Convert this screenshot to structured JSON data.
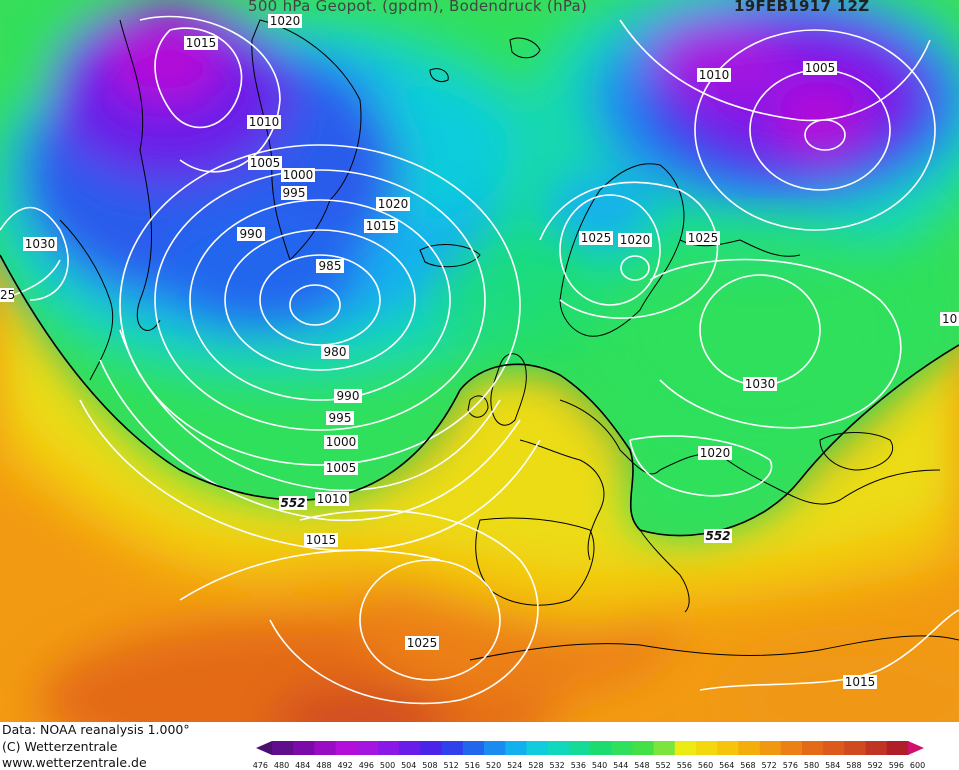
{
  "header": {
    "title": "500 hPa Geopot. (gpdm), Bodendruck (hPa)",
    "date": "19FEB1917 12Z"
  },
  "footer": {
    "credit_data": "Data: NOAA reanalysis 1.000°",
    "credit_copyright": "(C) Wetterzentrale",
    "credit_url": "www.wetterzentrale.de"
  },
  "colors": {
    "isobar": "#ffffff",
    "contour_552": "#000000",
    "coastline": "#000000"
  },
  "scale": {
    "values": [
      "476",
      "480",
      "484",
      "488",
      "492",
      "496",
      "500",
      "504",
      "508",
      "512",
      "516",
      "520",
      "524",
      "528",
      "532",
      "536",
      "540",
      "544",
      "548",
      "552",
      "556",
      "560",
      "564",
      "568",
      "572",
      "576",
      "580",
      "584",
      "588",
      "592",
      "596",
      "600"
    ],
    "colors": [
      "#4b0f6e",
      "#600e8c",
      "#7c0aa8",
      "#990cc4",
      "#b40fd8",
      "#a614e0",
      "#8a18e6",
      "#6a1ce8",
      "#4a24e8",
      "#3040ec",
      "#2266ee",
      "#1a8cf0",
      "#12b0ee",
      "#10ccdc",
      "#10d8bc",
      "#14dc98",
      "#1cdc70",
      "#2ee05c",
      "#44e048",
      "#7ce43c",
      "#ecec14",
      "#f4d80e",
      "#f6c40c",
      "#f4ae0c",
      "#f09812",
      "#ec8014",
      "#e46a18",
      "#dc5a1c",
      "#d04a20",
      "#c03424",
      "#b01e28",
      "#d0106c"
    ]
  },
  "isobar_labels": [
    {
      "text": "1020"
    },
    {
      "text": "1015"
    },
    {
      "text": "1010"
    },
    {
      "text": "1005"
    },
    {
      "text": "1000"
    },
    {
      "text": "995"
    },
    {
      "text": "990"
    },
    {
      "text": "985"
    },
    {
      "text": "980"
    },
    {
      "text": "990"
    },
    {
      "text": "995"
    },
    {
      "text": "1000"
    },
    {
      "text": "1005"
    },
    {
      "text": "1010"
    },
    {
      "text": "1015"
    },
    {
      "text": "1020"
    },
    {
      "text": "1015"
    },
    {
      "text": "1030"
    },
    {
      "text": "1010"
    },
    {
      "text": "1005"
    },
    {
      "text": "1025"
    },
    {
      "text": "1020"
    },
    {
      "text": "1025"
    },
    {
      "text": "1030"
    },
    {
      "text": "1020"
    },
    {
      "text": "1025"
    },
    {
      "text": "1015"
    },
    {
      "text": "25"
    },
    {
      "text": "10"
    }
  ],
  "contour_labels": [
    {
      "text": "552"
    },
    {
      "text": "552"
    }
  ]
}
